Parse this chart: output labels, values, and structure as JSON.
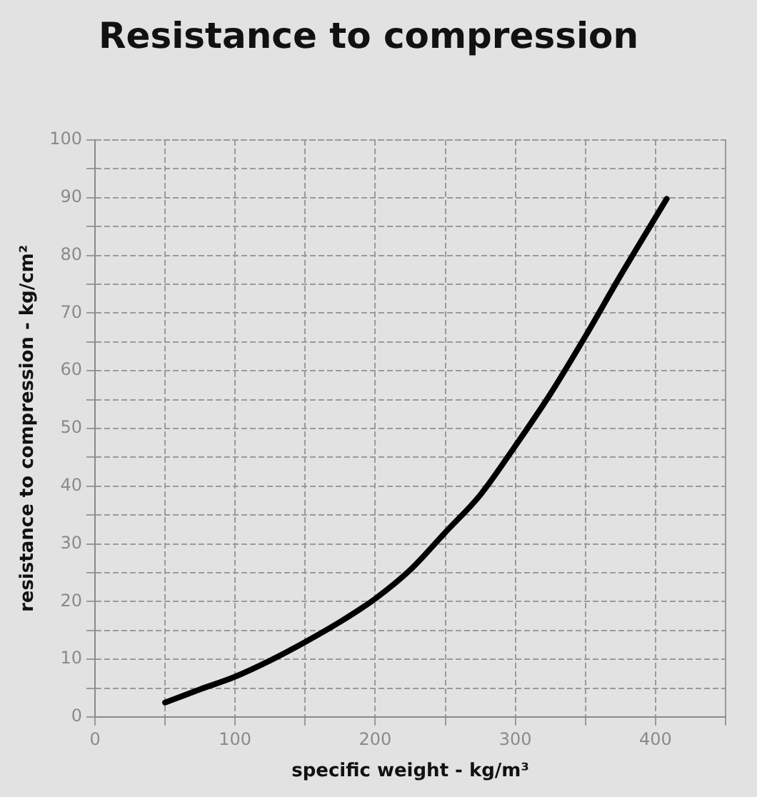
{
  "chart_data": {
    "type": "line",
    "title": "Resistance to compression",
    "xlabel": "specific weight - kg/m³",
    "ylabel": "resistance to compression - kg/cm²",
    "series": [
      {
        "color": "#000000",
        "x": [
          50,
          75,
          100,
          125,
          150,
          175,
          200,
          225,
          250,
          275,
          300,
          325,
          350,
          375,
          408
        ],
        "values": [
          2.5,
          4.8,
          7,
          9.8,
          13,
          16.5,
          20.5,
          25.5,
          32,
          38.5,
          47,
          56,
          66,
          76.5,
          89.8
        ]
      }
    ],
    "xlim": [
      0,
      450
    ],
    "ylim": [
      0,
      100
    ],
    "xticks": [
      0,
      {
        "value": 50,
        "label": null
      },
      100,
      {
        "value": 150,
        "label": null
      },
      200,
      {
        "value": 250,
        "label": null
      },
      300,
      {
        "value": 350,
        "label": null
      },
      400,
      {
        "value": 450,
        "label": null
      }
    ],
    "yticks": [
      0,
      {
        "value": 5,
        "label": null
      },
      10,
      {
        "value": 15,
        "label": null
      },
      20,
      {
        "value": 25,
        "label": null
      },
      30,
      {
        "value": 35,
        "label": null
      },
      40,
      {
        "value": 45,
        "label": null
      },
      50,
      {
        "value": 55,
        "label": null
      },
      60,
      {
        "value": 65,
        "label": null
      },
      70,
      {
        "value": 75,
        "label": null
      },
      80,
      {
        "value": 85,
        "label": null
      },
      90,
      {
        "value": 95,
        "label": null
      },
      100
    ],
    "grid": true,
    "legend": false,
    "marker": "none",
    "line_style": "solid"
  }
}
